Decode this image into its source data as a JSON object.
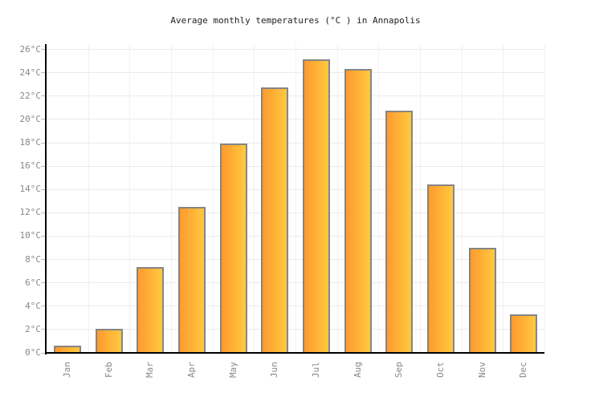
{
  "title": "Average monthly temperatures (°C ) in Annapolis",
  "chart_data": {
    "type": "bar",
    "title": "Average monthly temperatures (°C ) in Annapolis",
    "categories": [
      "Jan",
      "Feb",
      "Mar",
      "Apr",
      "May",
      "Jun",
      "Jul",
      "Aug",
      "Sep",
      "Oct",
      "Nov",
      "Dec"
    ],
    "values": [
      0.6,
      2.0,
      7.3,
      12.5,
      17.9,
      22.7,
      25.1,
      24.3,
      20.7,
      14.4,
      9.0,
      3.3
    ],
    "xlabel": "",
    "ylabel": "",
    "ylim": [
      0,
      26
    ],
    "ytick_step": 2,
    "ytick_suffix": "°C",
    "grid": true,
    "legend": "none",
    "colors": {
      "bar_gradient_left": "#ff9a2e",
      "bar_gradient_right": "#ffc93f",
      "bar_border": "#858585",
      "axis": "#000000",
      "gridline_h": "#ebebeb",
      "gridline_v": "#f2f2f2",
      "tick": "#bbbbbb",
      "label_text": "#888888",
      "title_text": "#222222",
      "background": "#ffffff"
    }
  }
}
